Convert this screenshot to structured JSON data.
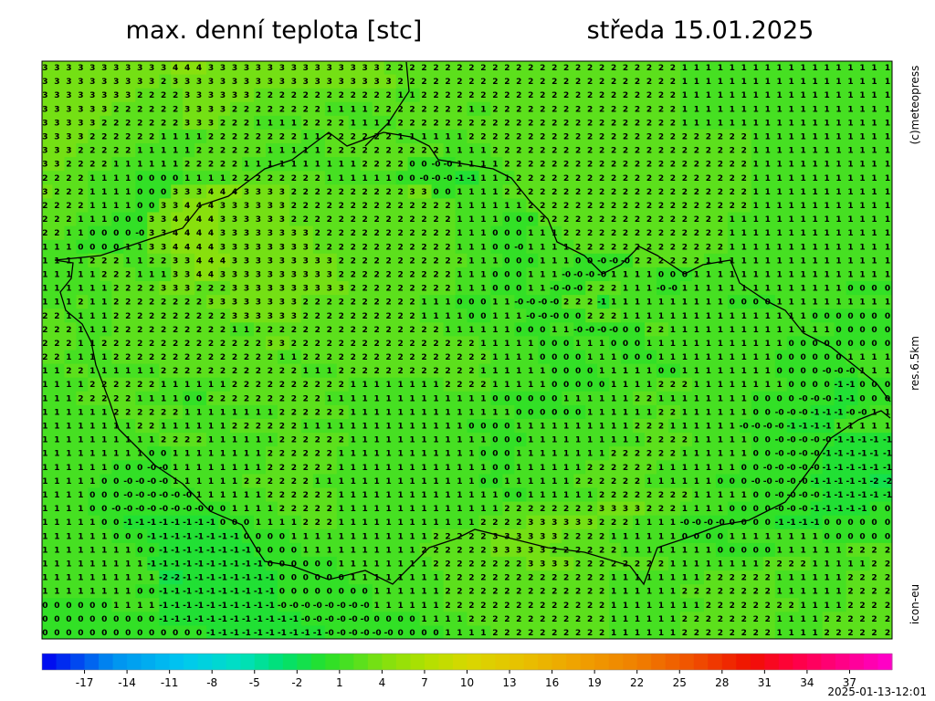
{
  "header": {
    "title": "max. denní teplota [stc]",
    "date": "středa 15.01.2025"
  },
  "side_labels": [
    "(c)meteopress",
    "res.6.5km",
    "icon-eu"
  ],
  "timestamp": "2025-01-13-12:01",
  "colorbar": {
    "lim": [
      -20,
      40
    ],
    "ticks": [
      -17,
      -14,
      -11,
      -8,
      -5,
      -2,
      1,
      4,
      7,
      10,
      13,
      16,
      19,
      22,
      25,
      28,
      31,
      34,
      37
    ],
    "stops": [
      [
        -20,
        "#0000f0"
      ],
      [
        -15,
        "#0090f0"
      ],
      [
        -10,
        "#00c8f0"
      ],
      [
        -6,
        "#00e0c0"
      ],
      [
        -3,
        "#00e070"
      ],
      [
        0,
        "#28e028"
      ],
      [
        2,
        "#50e020"
      ],
      [
        4,
        "#80e010"
      ],
      [
        7,
        "#b0e000"
      ],
      [
        10,
        "#d8d800"
      ],
      [
        14,
        "#e8c000"
      ],
      [
        18,
        "#f0a000"
      ],
      [
        22,
        "#f08000"
      ],
      [
        26,
        "#f05000"
      ],
      [
        30,
        "#f01000"
      ],
      [
        33,
        "#ff0040"
      ],
      [
        37,
        "#ff0090"
      ],
      [
        40,
        "#ff00d0"
      ]
    ]
  },
  "grid": {
    "rows": [
      "3 3 3 3 3 3 3 3 3 3 3 4 4 4 3 3 3 3 3 3 3 3 3 3 3 3 3 3 3 2 2 2 2 2 2 2 2 2 2 2 2 2 2 2 2 2 2 2 2 2 2 2 2 2 1 1 1 1 1 1 1 1 1 1 1 1 1 1 1 1 1 1",
      "3 3 3 3 3 3 3 3 3 3 2 3 3 3 3 3 3 3 3 3 3 3 3 3 3 3 3 3 3 3 2 2 2 2 2 2 2 2 2 2 2 2 2 2 2 2 2 2 2 2 2 2 2 2 1 1 1 1 1 1 1 1 1 1 1 1 1 1 1 1 1 1",
      "3 3 3 3 3 3 3 3 2 2 2 2 3 3 3 3 3 3 2 2 2 2 2 2 2 2 2 2 2 2 1 1 2 2 2 2 2 2 2 2 2 2 2 2 2 2 2 2 2 2 2 2 2 2 1 1 1 1 1 1 1 1 1 1 1 1 1 1 1 1 1 1",
      "3 3 3 3 3 3 2 2 2 2 2 2 3 3 3 3 2 2 2 2 2 2 2 2 1 1 1 1 2 2 2 2 2 2 2 2 1 1 2 2 2 2 2 2 2 2 2 2 2 2 2 2 2 2 1 1 1 1 1 1 1 1 1 1 1 1 1 1 1 1 1 1",
      "3 3 3 3 3 2 2 2 2 2 2 2 3 3 3 2 2 2 1 1 1 1 2 2 2 2 1 1 1 1 2 2 2 2 2 2 2 2 2 2 2 2 2 2 2 2 2 2 2 2 2 2 2 2 1 1 1 1 1 1 1 1 1 1 1 1 1 1 1 1 1 1",
      "3 3 3 3 2 2 2 2 2 2 1 1 1 1 2 2 2 2 2 2 2 2 1 1 2 2 2 2 2 2 1 1 1 1 1 1 2 2 2 2 2 2 2 2 2 2 2 2 2 2 2 2 2 2 2 2 2 2 2 2 1 1 1 1 1 1 1 1 1 1 1 1",
      "3 3 3 2 2 2 2 2 1 1 1 1 1 2 2 2 2 2 2 1 1 1 1 1 2 2 2 2 2 2 2 2 2 2 1 1 1 1 2 2 2 2 2 2 2 2 2 2 2 2 2 2 2 2 2 2 2 2 2 2 1 1 1 1 1 1 1 1 1 1 1 1",
      "3 3 2 2 2 2 1 1 1 1 1 1 2 2 2 2 2 1 1 1 1 1 1 1 1 1 1 2 2 2 2 0 0 -0 -0 1 1 1 1 2 2 2 2 2 2 2 2 2 2 2 2 2 2 2 2 2 2 2 2 2 1 1 1 1 1 1 1 1 1 1 1 1",
      "2 2 2 2 1 1 1 1 0 0 0 0 1 1 1 1 2 2 2 2 2 2 2 2 1 1 1 1 1 1 0 0 -0 -0 -0 -1 -1 1 1 1 2 2 2 2 2 2 2 2 2 2 2 2 2 2 2 2 2 2 2 2 1 1 1 1 1 1 1 1 1 1 1 1",
      "3 2 2 2 1 1 1 1 0 0 0 3 3 3 4 4 4 3 3 3 3 2 2 2 2 2 2 2 2 2 2 3 3 0 0 1 1 1 1 2 2 2 2 2 2 2 2 2 2 2 2 2 2 2 2 2 2 2 2 2 1 1 1 1 1 1 1 1 1 1 1 1",
      "2 2 2 2 1 1 1 1 0 0 3 3 4 4 4 3 3 3 3 3 3 2 2 2 2 2 2 2 2 2 2 2 2 2 2 1 1 1 1 1 1 2 2 2 2 2 2 2 2 2 2 2 2 2 2 2 2 2 2 2 1 1 1 1 1 1 1 1 1 1 1 1",
      "2 2 2 1 1 1 0 0 0 3 3 4 4 4 4 3 3 3 3 3 3 2 2 2 2 2 2 2 2 2 2 2 2 2 2 1 1 1 1 0 0 0 2 2 2 2 2 2 2 2 2 2 2 2 2 2 2 2 1 1 1 1 1 1 1 1 1 1 1 1 1 1",
      "2 2 1 1 0 0 0 0 -0 3 3 4 4 4 4 3 3 3 3 3 3 3 3 2 2 2 2 2 2 2 2 2 2 2 2 1 1 1 0 0 0 1 1 1 2 2 2 2 2 2 2 2 2 2 2 2 2 2 1 1 1 1 1 1 1 1 1 1 1 1 1 1",
      "1 1 1 0 0 0 0 1 1 3 3 4 4 4 4 3 3 3 3 3 3 3 3 2 2 2 2 2 2 2 2 2 2 2 2 1 1 1 0 0 -0 1 1 1 1 2 2 2 2 2 2 2 2 2 2 2 2 2 1 1 1 1 1 1 1 1 1 1 1 1 1 1",
      "1 1 1 1 2 2 2 1 1 2 2 3 3 4 4 4 3 3 3 3 3 3 3 3 3 2 2 2 2 2 2 2 2 2 2 2 1 1 1 0 0 0 1 1 1 0 0 -0 -0 -0 2 2 2 2 2 2 1 1 1 1 1 1 1 1 1 1 1 1 1 1 1 1",
      "1 1 1 1 1 2 2 2 1 1 1 3 3 4 4 3 3 3 3 3 3 3 3 3 3 2 2 2 2 2 2 2 2 2 2 1 1 1 0 0 0 1 1 1 -0 -0 -0 -0 1 1 1 1 0 0 0 1 1 1 1 1 1 1 1 1 1 1 1 1 1 1 1 1",
      "1 1 1 1 1 1 2 2 2 2 3 3 3 2 2 2 3 3 3 3 3 3 3 3 3 3 2 2 2 2 2 2 2 2 2 1 1 1 0 0 0 1 1 -0 -0 -0 2 2 2 1 1 1 -0 -0 1 1 1 1 1 1 1 1 1 1 1 1 1 1 0 0 0 0",
      "1 1 1 2 1 1 2 2 2 2 2 2 2 2 3 3 3 3 3 3 3 3 2 2 2 2 2 2 2 2 2 2 1 1 1 0 0 0 1 1 -0 -0 -0 -0 2 2 2 -1 1 1 1 1 1 1 1 1 1 1 0 0 0 0 1 1 1 1 1 1 1 1 1 1",
      "2 2 1 1 1 1 2 2 2 2 2 2 2 2 2 2 3 3 3 3 3 3 2 2 2 2 2 2 2 2 2 2 1 1 1 1 0 0 1 1 1 -0 -0 -0 0 0 2 2 2 1 1 1 1 1 1 1 1 1 1 1 1 1 1 1 1 0 0 0 0 0 0 0",
      "2 2 2 1 1 1 2 2 2 2 2 2 2 2 2 2 1 1 2 2 2 2 2 2 2 2 2 2 2 2 2 2 2 2 1 1 1 1 1 1 0 0 0 1 1 -0 -0 -0 -0 0 0 2 2 1 1 1 1 1 1 1 1 1 1 1 1 1 1 0 0 0 0 0",
      "2 2 2 1 1 2 2 2 2 2 2 2 2 2 2 2 2 2 2 3 3 2 2 2 2 2 2 2 2 2 2 2 2 2 2 2 2 1 1 1 1 1 0 0 0 1 1 1 0 0 0 1 1 1 1 1 1 1 1 1 1 1 1 0 0 0 0 0 0 0 0 0",
      "2 2 1 1 1 1 2 2 2 2 2 2 2 2 2 2 2 2 2 2 1 1 2 2 2 2 2 2 2 2 2 2 2 2 2 2 2 2 1 1 1 1 0 0 0 0 1 1 1 0 0 0 1 1 1 1 1 1 1 1 1 1 0 0 0 0 0 0 1 1 1 1",
      "1 1 2 2 1 1 1 1 1 1 2 2 2 2 2 2 2 2 2 2 2 2 1 1 1 2 2 2 2 2 2 2 2 2 2 2 2 1 1 1 1 1 1 0 0 0 0 1 1 1 1 1 0 0 1 1 1 1 1 1 1 1 0 0 0 0 -0 -0 -0 1 1 1",
      "1 1 1 1 2 2 2 2 2 2 1 1 1 1 1 1 2 2 2 2 2 2 2 2 2 2 1 1 1 1 1 1 1 1 2 2 2 2 1 1 1 1 1 0 0 0 0 0 1 1 1 1 2 2 2 1 1 1 1 1 1 1 1 0 0 0 0 -1 -1 0 0 0",
      "1 1 1 2 2 2 2 2 1 1 1 1 0 0 2 2 2 2 2 2 2 2 2 2 1 1 1 1 1 1 1 1 1 1 1 1 1 1 0 0 0 0 0 0 1 1 1 1 1 1 2 2 1 1 1 1 1 1 1 1 0 0 0 0 -0 -0 -0 -1 -1 0 0 0",
      "1 1 1 1 1 1 2 2 2 2 2 2 1 1 1 1 1 1 1 1 2 2 2 2 2 2 1 1 1 1 1 1 1 1 1 1 1 1 1 1 0 0 0 0 0 0 1 1 1 1 1 1 2 2 1 1 1 1 1 1 0 0 -0 -0 -0 -1 -1 -1 -0 -0 1 1",
      "1 1 1 1 1 1 1 1 2 2 1 1 1 1 1 1 2 2 2 2 2 2 1 1 1 1 1 1 1 1 1 1 1 1 1 1 0 0 0 0 1 1 1 1 1 1 1 1 1 1 2 2 2 1 1 1 1 1 1 -0 -0 -0 -0 -1 -1 -1 -1 1 1 1 1 1",
      "1 1 1 1 1 1 1 1 1 1 2 2 2 2 1 1 1 1 1 1 2 2 2 2 2 2 1 1 1 1 1 1 1 1 1 1 1 1 0 0 0 1 1 1 1 1 1 1 1 1 1 2 2 2 2 1 1 1 1 1 0 0 -0 -0 -0 -0 -0 -1 -1 -1 -1 -1",
      "1 1 1 1 1 1 1 1 1 0 0 1 1 1 1 1 1 1 1 2 2 2 2 2 2 1 1 1 1 1 1 1 1 1 1 1 1 0 0 0 1 1 1 1 1 1 1 1 2 2 2 2 2 2 1 1 1 1 1 1 0 0 -0 -0 -0 -0 -1 -1 -1 -1 -1 -1",
      "1 1 1 1 1 1 0 0 0 -0 -0 1 1 1 1 1 1 1 1 2 2 2 2 2 2 1 1 1 1 1 1 1 1 1 1 1 1 1 0 0 1 1 1 1 1 1 2 2 2 2 2 2 1 1 1 1 1 1 1 0 0 -0 -0 -0 -0 -0 -1 -1 -1 -1 -1 -1",
      "1 1 1 1 1 0 0 -0 -0 -0 -0 1 1 1 1 1 1 2 2 2 2 2 2 1 1 1 1 1 1 1 1 1 1 1 1 1 1 0 0 1 1 1 1 1 1 2 2 2 2 2 2 1 1 1 1 1 1 0 0 0 -0 -0 -0 -0 -0 -1 -1 -1 -1 -1 -2 -2",
      "1 1 1 1 0 0 0 -0 -0 -0 -0 -0 -0 1 1 1 1 1 1 2 2 2 2 2 2 1 1 1 1 1 1 1 1 1 1 1 1 1 1 0 0 1 1 1 1 1 1 2 2 2 2 2 2 2 2 1 1 1 1 1 0 0 -0 -0 -0 -0 -1 -1 -1 -1 -1 -1",
      "1 1 1 1 0 0 -0 -0 -0 -0 -0 -0 -0 -0 0 0 1 1 1 1 2 2 2 2 2 1 1 1 1 1 1 1 1 1 1 1 1 1 1 2 2 2 2 2 2 2 2 3 3 3 3 2 2 2 1 1 1 1 0 0 0 0 -0 -0 -0 -1 -1 -1 -1 -1 0 0",
      "1 1 1 1 1 0 0 -1 -1 -1 -1 -1 -1 -1 -1 0 0 0 1 1 1 1 2 2 2 1 1 1 1 1 1 1 1 1 1 1 1 2 2 2 2 3 3 3 3 3 3 2 2 2 1 1 1 1 -0 -0 -0 -0 0 0 0 0 -1 -1 -1 -1 0 0 0 0 0 0",
      "1 1 1 1 1 1 0 0 0 -1 -1 -1 -1 -1 -1 -1 -1 0 0 0 0 1 1 1 1 1 1 1 1 1 1 1 1 2 2 2 2 2 3 3 3 3 3 3 2 2 2 2 1 1 1 1 1 1 0 0 0 0 1 1 1 1 1 1 1 1 0 0 0 0 0 0",
      "1 1 1 1 1 1 1 1 0 0 -1 -1 -1 -1 -1 -1 -1 -1 0 0 0 0 1 1 1 1 1 1 1 1 1 1 2 2 2 2 2 2 3 3 3 3 3 2 2 2 2 2 2 1 1 1 1 1 1 1 1 0 0 0 0 0 1 1 1 1 1 1 2 2 2 2",
      "1 1 1 1 1 1 1 1 1 -1 -1 -1 -1 -1 -1 -1 -1 -1 -1 0 0 0 0 0 0 1 1 1 1 1 1 1 1 2 2 2 2 2 2 2 2 3 3 3 3 2 2 2 2 2 2 2 2 1 1 1 1 1 1 1 1 2 2 2 2 1 1 1 1 1 2 2",
      "1 1 1 1 1 1 1 1 1 1 -2 -2 -1 -1 -1 -1 -1 -1 -1 -1 0 0 0 0 0 0 1 1 1 1 1 1 1 1 2 2 2 2 2 2 2 2 2 2 2 2 2 2 1 1 1 1 1 1 1 1 2 2 2 2 2 2 1 1 1 1 1 1 2 2 2 2",
      "1 1 1 1 1 1 1 1 0 0 -1 -1 -1 -1 -1 -1 -1 -1 -1 -1 0 0 0 0 0 0 0 0 1 1 1 1 1 1 2 2 2 2 2 2 2 2 2 2 2 2 2 2 1 1 1 1 1 1 2 2 2 2 2 2 2 2 1 1 1 1 1 1 2 2 2 2",
      "0 0 0 0 0 0 1 1 1 1 -1 -1 -1 -1 -1 -1 -1 -1 -1 -1 -0 -0 -0 -0 -0 -0 -0 -0 1 1 1 1 1 1 2 2 2 2 2 2 2 2 2 2 2 2 2 2 1 1 1 1 1 1 1 1 2 2 2 2 2 2 2 2 1 1 1 1 2 2 2 2",
      "0 0 0 0 0 0 0 0 0 0 -1 -1 -1 -1 -1 -1 -1 -1 -1 -1 -1 -1 -0 -0 -0 -0 -0 -0 0 0 0 0 1 1 1 1 2 2 2 2 2 2 2 2 2 2 2 2 1 1 1 1 1 1 2 2 2 2 2 2 2 2 1 1 1 1 2 2 2 2 2 2",
      "0 0 0 0 0 0 0 0 0 0 0 0 0 0 -1 -1 -1 -1 -1 -1 -1 -1 -1 -1 -0 -0 -0 -0 -0 -0 0 0 0 0 1 1 1 1 2 2 2 2 2 2 2 2 2 2 1 1 1 1 1 1 2 2 2 2 2 2 2 2 1 1 1 1 2 2 2 2 2 2"
    ]
  }
}
